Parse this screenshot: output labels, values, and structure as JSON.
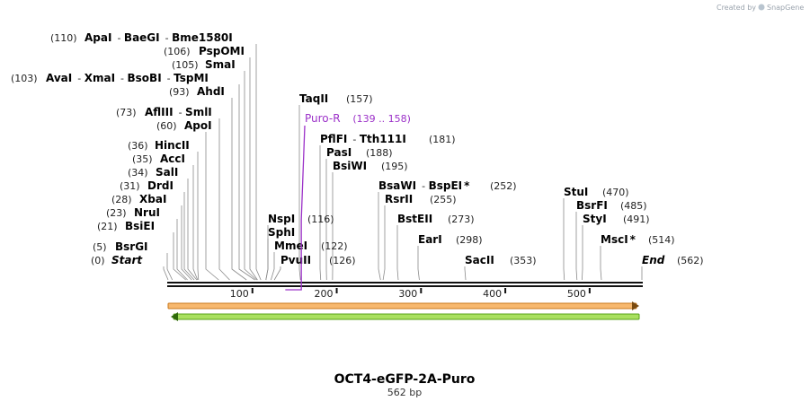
{
  "colors": {
    "backbone": "#111111",
    "feature_label": "#9b30c8",
    "fwd_fill": "#f7b86e",
    "fwd_stroke": "#c8791e",
    "rev_fill": "#a9e05f",
    "rev_stroke": "#58a217"
  },
  "credit": {
    "prefix": "Created by",
    "brand": "SnapGene",
    "icon": "snapgene-logo-icon"
  },
  "map": {
    "title": "OCT4-eGFP-2A-Puro",
    "subtitle": "562 bp",
    "length": 562
  },
  "axis_ticks": [
    100,
    200,
    300,
    400,
    500
  ],
  "feature": {
    "name": "Puro-R",
    "range": "(139 .. 158)",
    "start": 139,
    "end": 158
  },
  "sites": [
    {
      "pos": 110,
      "label": "(110)",
      "names": [
        {
          "n": "ApaI"
        },
        {
          "n": "BaeGI"
        },
        {
          "n": "Bme1580I"
        }
      ]
    },
    {
      "pos": 106,
      "label": "(106)",
      "names": [
        {
          "n": "PspOMI"
        }
      ]
    },
    {
      "pos": 105,
      "label": "(105)",
      "names": [
        {
          "n": "SmaI"
        }
      ]
    },
    {
      "pos": 103,
      "label": "(103)",
      "names": [
        {
          "n": "AvaI"
        },
        {
          "n": "XmaI"
        },
        {
          "n": "BsoBI"
        },
        {
          "n": "TspMI"
        }
      ]
    },
    {
      "pos": 93,
      "label": "(93)",
      "names": [
        {
          "n": "AhdI"
        }
      ]
    },
    {
      "pos": 73,
      "label": "(73)",
      "names": [
        {
          "n": "AflIII"
        },
        {
          "n": "SmlI"
        }
      ]
    },
    {
      "pos": 60,
      "label": "(60)",
      "names": [
        {
          "n": "ApoI"
        }
      ]
    },
    {
      "pos": 36,
      "label": "(36)",
      "names": [
        {
          "n": "HincII"
        }
      ]
    },
    {
      "pos": 35,
      "label": "(35)",
      "names": [
        {
          "n": "AccI"
        }
      ]
    },
    {
      "pos": 34,
      "label": "(34)",
      "names": [
        {
          "n": "SalI"
        }
      ]
    },
    {
      "pos": 31,
      "label": "(31)",
      "names": [
        {
          "n": "DrdI"
        }
      ]
    },
    {
      "pos": 28,
      "label": "(28)",
      "names": [
        {
          "n": "XbaI"
        }
      ]
    },
    {
      "pos": 23,
      "label": "(23)",
      "names": [
        {
          "n": "NruI"
        }
      ]
    },
    {
      "pos": 21,
      "label": "(21)",
      "names": [
        {
          "n": "BsiEI"
        }
      ]
    },
    {
      "pos": 5,
      "label": "(5)",
      "names": [
        {
          "n": "BsrGI"
        }
      ]
    },
    {
      "pos": 0,
      "label": "(0)",
      "names": [
        {
          "n": "Start",
          "italic": true
        }
      ]
    },
    {
      "pos": 157,
      "label": "(157)",
      "names": [
        {
          "n": "TaqII"
        }
      ]
    },
    {
      "pos": 181,
      "label": "(181)",
      "names": [
        {
          "n": "PflFI"
        },
        {
          "n": "Tth111I"
        }
      ]
    },
    {
      "pos": 188,
      "label": "(188)",
      "names": [
        {
          "n": "PasI"
        }
      ]
    },
    {
      "pos": 195,
      "label": "(195)",
      "names": [
        {
          "n": "BsiWI"
        }
      ]
    },
    {
      "pos": 116,
      "label": "(116)",
      "names": [
        {
          "n": "NspI"
        }
      ]
    },
    {
      "pos": 116,
      "label": "",
      "names": [
        {
          "n": "SphI"
        }
      ]
    },
    {
      "pos": 122,
      "label": "(122)",
      "names": [
        {
          "n": "MmeI"
        }
      ]
    },
    {
      "pos": 126,
      "label": "(126)",
      "names": [
        {
          "n": "PvuII"
        }
      ]
    },
    {
      "pos": 252,
      "label": "(252)",
      "names": [
        {
          "n": "BsaWI"
        },
        {
          "n": "BspEI",
          "star": "*"
        }
      ]
    },
    {
      "pos": 255,
      "label": "(255)",
      "names": [
        {
          "n": "RsrII"
        }
      ]
    },
    {
      "pos": 273,
      "label": "(273)",
      "names": [
        {
          "n": "BstEII"
        }
      ]
    },
    {
      "pos": 298,
      "label": "(298)",
      "names": [
        {
          "n": "EarI"
        }
      ]
    },
    {
      "pos": 353,
      "label": "(353)",
      "names": [
        {
          "n": "SacII"
        }
      ]
    },
    {
      "pos": 470,
      "label": "(470)",
      "names": [
        {
          "n": "StuI"
        }
      ]
    },
    {
      "pos": 485,
      "label": "(485)",
      "names": [
        {
          "n": "BsrFI"
        }
      ]
    },
    {
      "pos": 491,
      "label": "(491)",
      "names": [
        {
          "n": "StyI"
        }
      ]
    },
    {
      "pos": 514,
      "label": "(514)",
      "names": [
        {
          "n": "MscI",
          "star": "*"
        }
      ]
    },
    {
      "pos": 562,
      "label": "(562)",
      "names": [
        {
          "n": "End",
          "italic": true
        }
      ]
    }
  ]
}
